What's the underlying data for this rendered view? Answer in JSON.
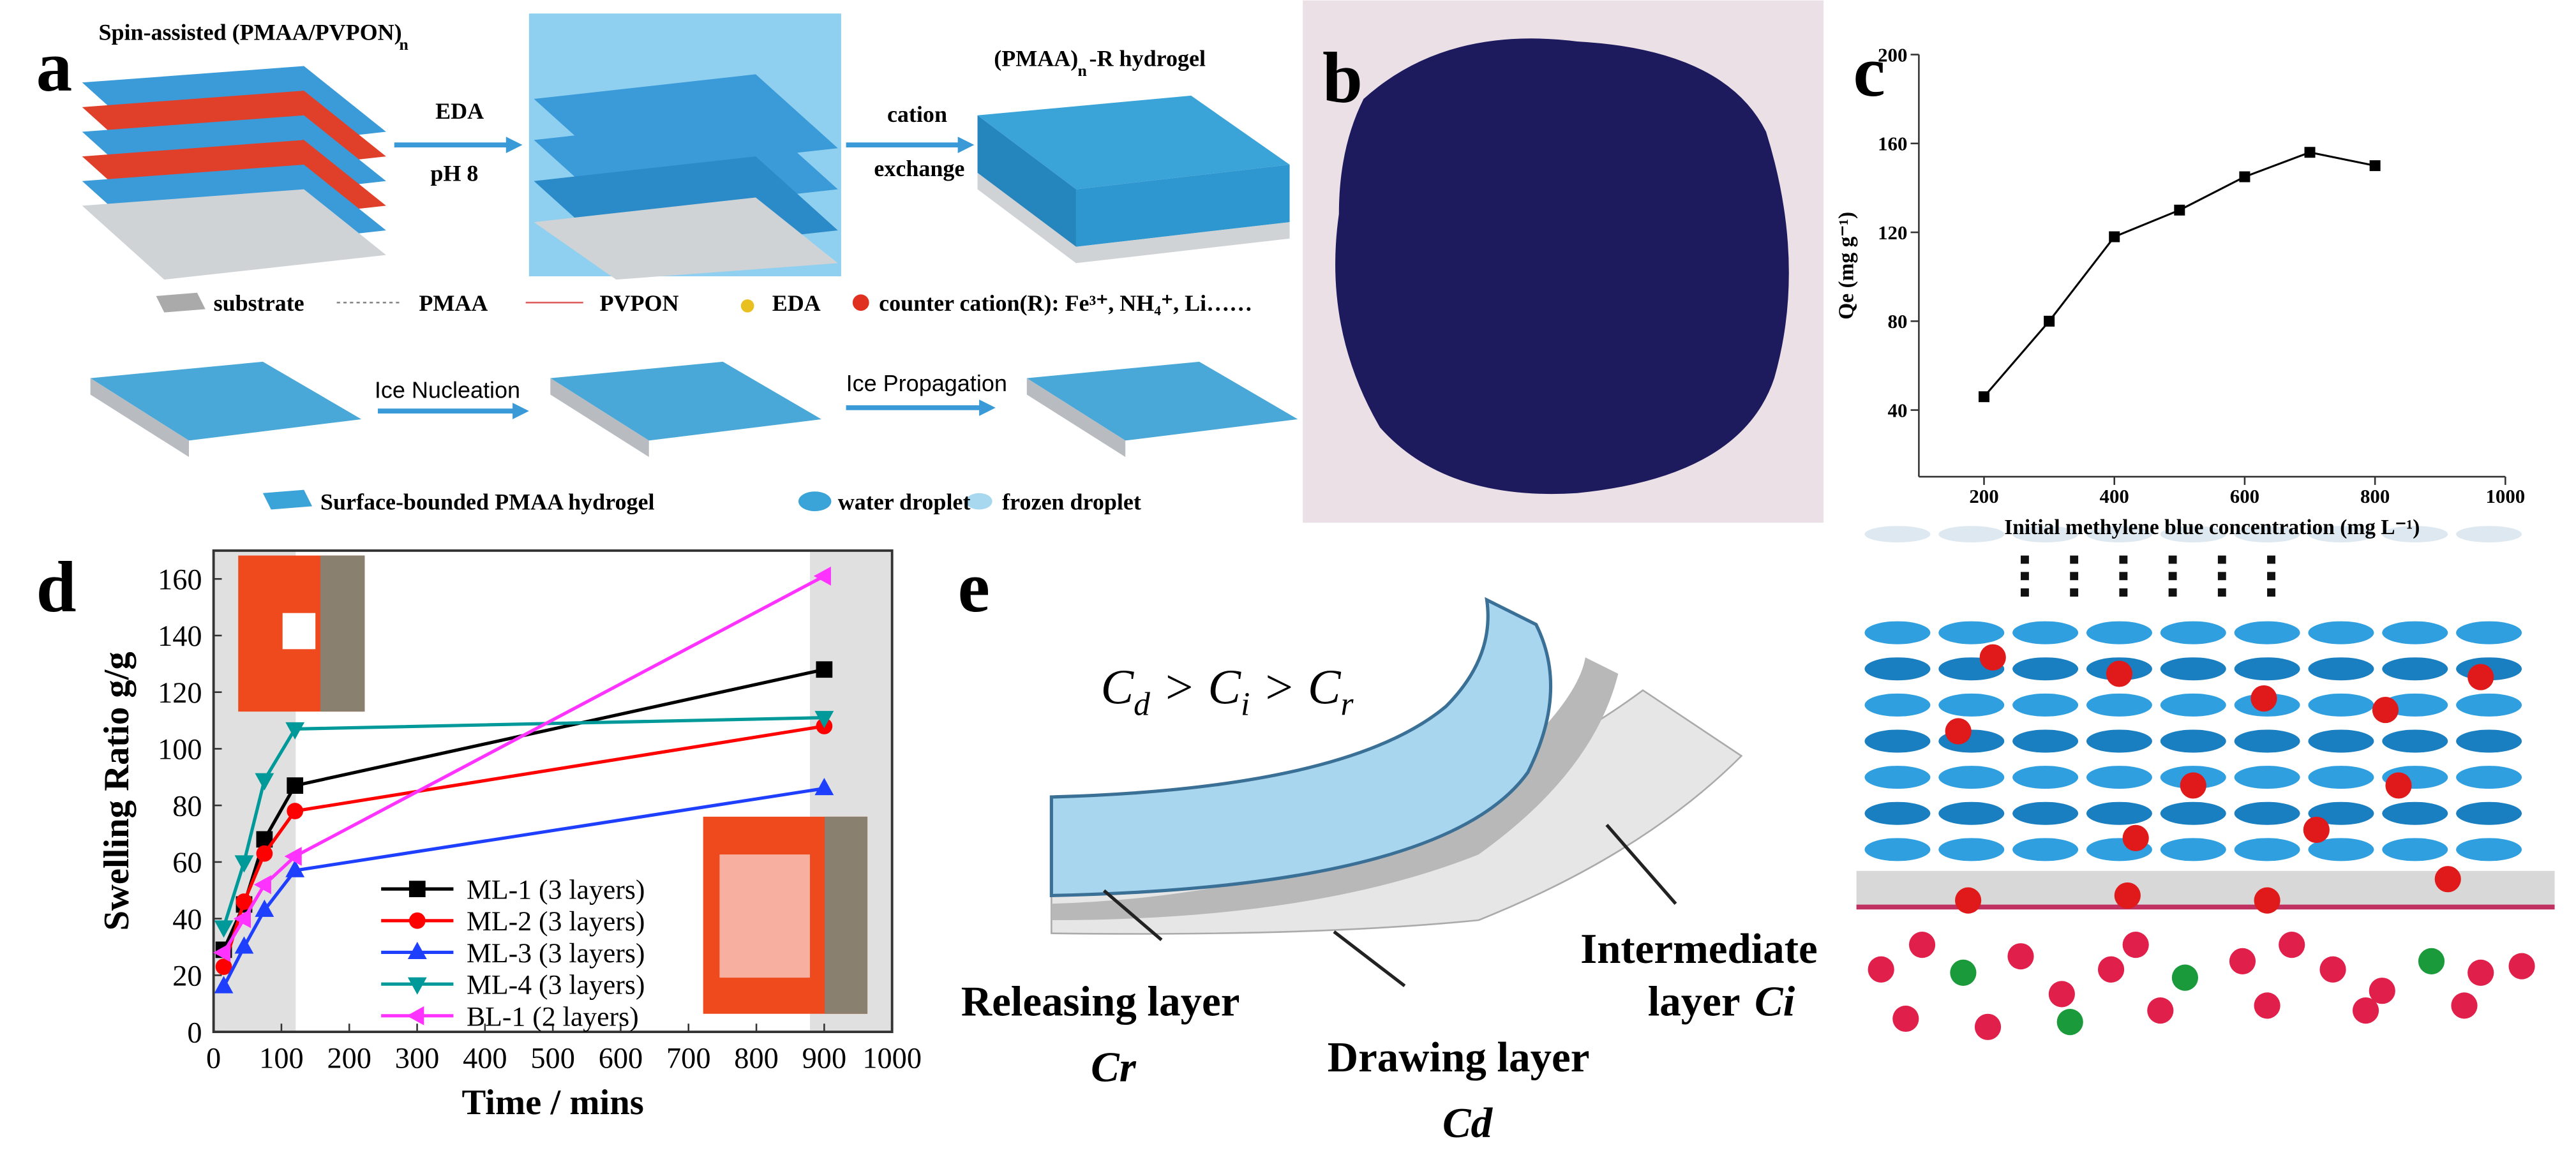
{
  "chart_data": [
    {
      "type": "line",
      "panel": "c",
      "x_label": "Initial methylene blue concentration (mg L⁻¹)",
      "y_label": "Qe (mg g⁻¹)",
      "x": [
        200,
        300,
        400,
        500,
        600,
        700,
        800
      ],
      "values": [
        46,
        80,
        118,
        130,
        145,
        156,
        150
      ],
      "color": "#000000",
      "marker": "square",
      "xlim": [
        100,
        1000
      ],
      "xticks": [
        200,
        400,
        600,
        800,
        1000
      ],
      "ylim": [
        10,
        200
      ],
      "yticks": [
        40,
        80,
        120,
        160,
        200
      ]
    },
    {
      "type": "line",
      "panel": "d",
      "x_label": "Time / mins",
      "y_label": "Swelling Ratio g/g",
      "x": [
        15,
        45,
        75,
        120,
        900
      ],
      "series": [
        {
          "name": "ML-1 (3 layers)",
          "color": "#000000",
          "marker": "square",
          "values": [
            29,
            45,
            68,
            87,
            128
          ]
        },
        {
          "name": "ML-2 (3 layers)",
          "color": "#ff0000",
          "marker": "circle",
          "values": [
            23,
            46,
            63,
            78,
            108
          ]
        },
        {
          "name": "ML-3 (3 layers)",
          "color": "#1f3fff",
          "marker": "triangle-up",
          "values": [
            16,
            30,
            43,
            57,
            86
          ]
        },
        {
          "name": "ML-4 (3 layers)",
          "color": "#009999",
          "marker": "triangle-down",
          "values": [
            37,
            60,
            89,
            107,
            111
          ]
        },
        {
          "name": "BL-1 (2 layers)",
          "color": "#ff33ff",
          "marker": "triangle-left",
          "values": [
            28,
            40,
            52,
            62,
            161
          ]
        }
      ],
      "xlim": [
        0,
        1000
      ],
      "xticks": [
        0,
        100,
        200,
        300,
        400,
        500,
        600,
        700,
        800,
        900,
        1000
      ],
      "ylim": [
        0,
        170
      ],
      "yticks": [
        0,
        20,
        40,
        60,
        80,
        100,
        120,
        140,
        160
      ]
    }
  ],
  "panel_a": {
    "label": "a",
    "title_left": "Spin-assisted (PMAA/PVPON)",
    "title_left_sub": "n",
    "step1_top": "EDA",
    "step1_bottom": "pH 8",
    "step2_top": "cation",
    "step2_bottom": "exchange",
    "title_right": "(PMAA)",
    "title_right_sub": "n",
    "title_right_rest": "-R hydrogel",
    "legend": [
      "substrate",
      "PMAA",
      "PVPON",
      "EDA",
      "counter cation(R): Fe³⁺, NH₄⁺, Li……"
    ],
    "ice_step1": "Ice Nucleation",
    "ice_step2": "Ice Propagation",
    "legend2": [
      "Surface-bounded PMAA hydrogel",
      "water droplet",
      "frozen droplet"
    ]
  },
  "panel_b": {
    "label": "b"
  },
  "panel_c": {
    "label": "c"
  },
  "panel_d": {
    "label": "d"
  },
  "panel_e": {
    "label": "e",
    "formula": [
      "C",
      "d",
      " > C",
      "i",
      " > C",
      "r"
    ],
    "releasing": "Releasing layer",
    "releasing_symbol": "Cr",
    "drawing": "Drawing layer",
    "drawing_symbol": "Cd",
    "intermediate": "Intermediate",
    "intermediate_word": "layer",
    "intermediate_symbol": "Ci"
  }
}
